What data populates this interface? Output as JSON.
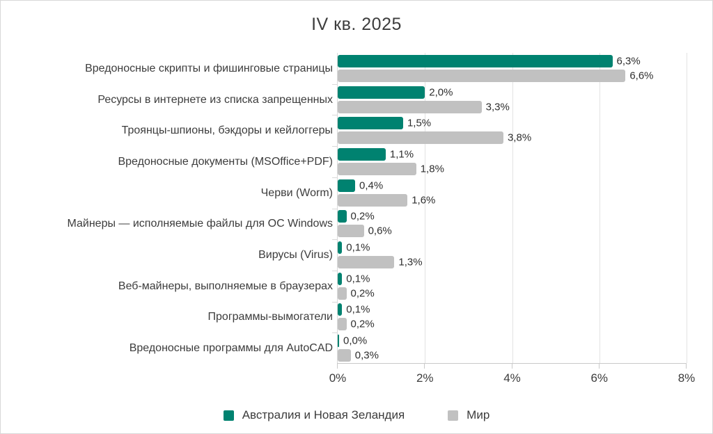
{
  "chart_data": {
    "type": "bar",
    "orientation": "horizontal",
    "title": "IV кв. 2025",
    "categories": [
      "Вредоносные скрипты и фишинговые страницы",
      "Ресурсы в интернете из списка запрещенных",
      "Троянцы-шпионы, бэкдоры и кейлоггеры",
      "Вредоносные документы (MSOffice+PDF)",
      "Черви (Worm)",
      "Майнеры — исполняемые файлы для ОС Windows",
      "Вирусы (Virus)",
      "Веб-майнеры, выполняемые в браузерах",
      "Программы-вымогатели",
      "Вредоносные программы для AutoCAD"
    ],
    "series": [
      {
        "name": "Австралия и Новая Зеландия",
        "color": "#008270",
        "values": [
          6.3,
          2.0,
          1.5,
          1.1,
          0.4,
          0.2,
          0.1,
          0.1,
          0.1,
          0.0
        ],
        "value_labels": [
          "6,3%",
          "2,0%",
          "1,5%",
          "1,1%",
          "0,4%",
          "0,2%",
          "0,1%",
          "0,1%",
          "0,1%",
          "0,0%"
        ]
      },
      {
        "name": "Мир",
        "color": "#c1c1c1",
        "values": [
          6.6,
          3.3,
          3.8,
          1.8,
          1.6,
          0.6,
          1.3,
          0.2,
          0.2,
          0.3
        ],
        "value_labels": [
          "6,6%",
          "3,3%",
          "3,8%",
          "1,8%",
          "1,6%",
          "0,6%",
          "1,3%",
          "0,2%",
          "0,2%",
          "0,3%"
        ]
      }
    ],
    "xlim": [
      0,
      8
    ],
    "x_tick_labels": [
      "0%",
      "2%",
      "4%",
      "6%",
      "8%"
    ],
    "grid": true,
    "legend_position": "bottom"
  }
}
